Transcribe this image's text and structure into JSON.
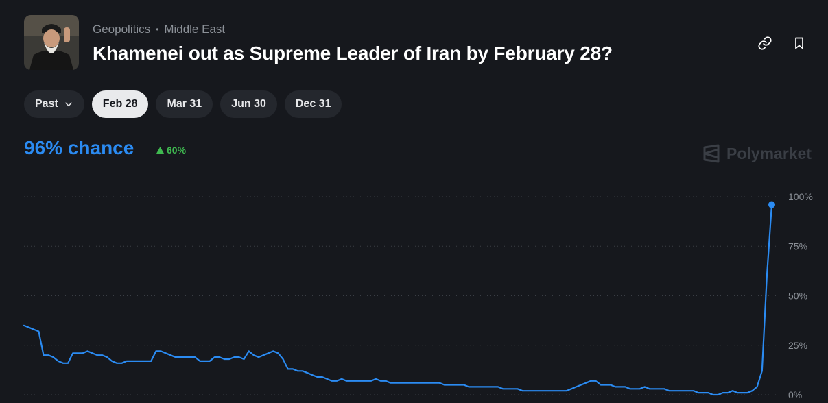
{
  "header": {
    "breadcrumb": [
      "Geopolitics",
      "Middle East"
    ],
    "title": "Khamenei out as Supreme Leader of Iran by February 28?"
  },
  "icons": {
    "link": "link-icon",
    "bookmark": "bookmark-icon",
    "dropdown": "chevron-down-icon",
    "delta": "triangle-up-icon"
  },
  "tabs": [
    {
      "label": "Past",
      "dropdown": true,
      "active": false
    },
    {
      "label": "Feb 28",
      "active": true
    },
    {
      "label": "Mar 31",
      "active": false
    },
    {
      "label": "Jun 30",
      "active": false
    },
    {
      "label": "Dec 31",
      "active": false
    }
  ],
  "summary": {
    "chance_label": "96% chance",
    "delta_label": "60%",
    "delta_direction": "up"
  },
  "watermark": {
    "label": "Polymarket"
  },
  "colors": {
    "line": "#2b8bf2",
    "positive": "#3fb950",
    "background": "#16181d"
  },
  "chart_data": {
    "type": "line",
    "title": "",
    "xlabel": "",
    "ylabel": "",
    "ylim": [
      0,
      100
    ],
    "y_ticks": [
      "0%",
      "25%",
      "50%",
      "75%",
      "100%"
    ],
    "grid": true,
    "y_axis_side": "right",
    "series": [
      {
        "values": [
          35,
          34,
          33,
          32,
          20,
          20,
          19,
          17,
          16,
          16,
          21,
          21,
          21,
          22,
          21,
          20,
          20,
          19,
          17,
          16,
          16,
          17,
          17,
          17,
          17,
          17,
          17,
          22,
          22,
          21,
          20,
          19,
          19,
          19,
          19,
          19,
          17,
          17,
          17,
          19,
          19,
          18,
          18,
          19,
          19,
          18,
          22,
          20,
          19,
          20,
          21,
          22,
          21,
          18,
          13,
          13,
          12,
          12,
          11,
          10,
          9,
          9,
          8,
          7,
          7,
          8,
          7,
          7,
          7,
          7,
          7,
          7,
          8,
          7,
          7,
          6,
          6,
          6,
          6,
          6,
          6,
          6,
          6,
          6,
          6,
          6,
          5,
          5,
          5,
          5,
          5,
          4,
          4,
          4,
          4,
          4,
          4,
          4,
          3,
          3,
          3,
          3,
          2,
          2,
          2,
          2,
          2,
          2,
          2,
          2,
          2,
          2,
          3,
          4,
          5,
          6,
          7,
          7,
          5,
          5,
          5,
          4,
          4,
          4,
          3,
          3,
          3,
          4,
          3,
          3,
          3,
          3,
          2,
          2,
          2,
          2,
          2,
          2,
          1,
          1,
          1,
          0,
          0,
          1,
          1,
          2,
          1,
          1,
          1,
          2,
          4,
          12,
          60,
          96
        ]
      }
    ]
  }
}
